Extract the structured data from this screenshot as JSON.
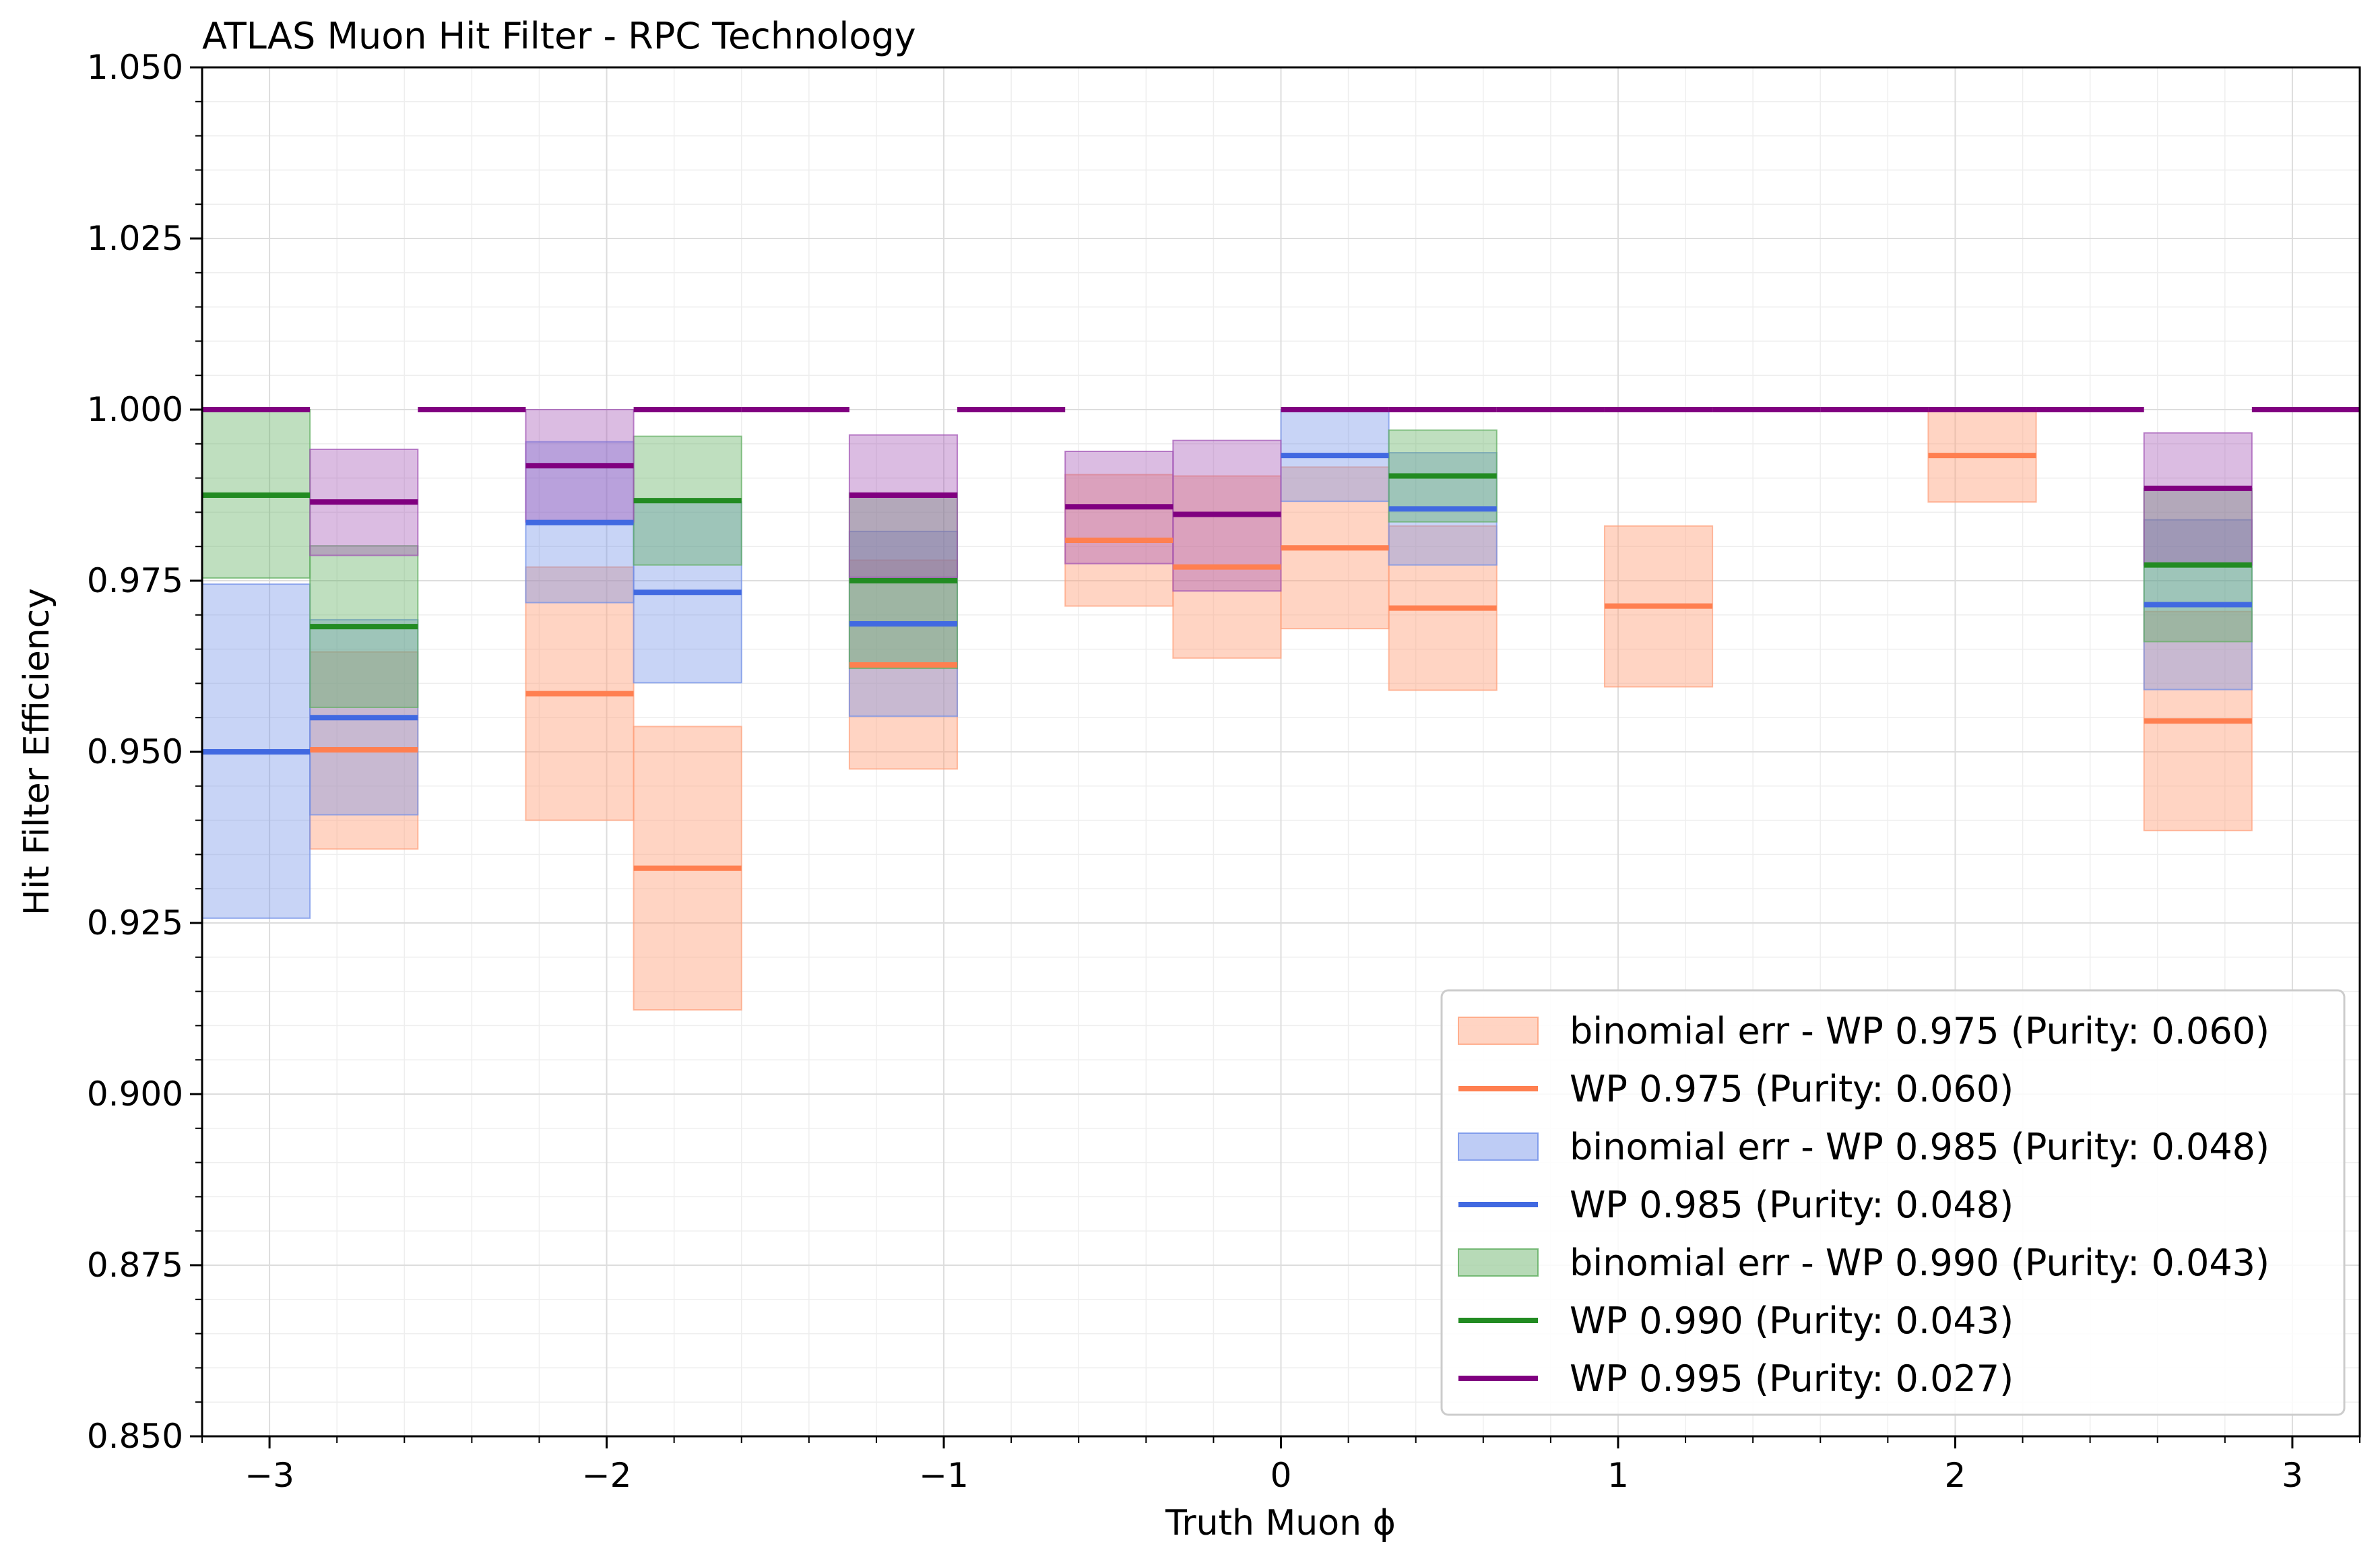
{
  "chart_data": {
    "type": "bar",
    "title": "ATLAS Muon Hit Filter - RPC Technology",
    "xlabel": "Truth Muon ϕ",
    "ylabel": "Hit Filter Efficiency",
    "xlim": [
      -3.2,
      3.2
    ],
    "ylim": [
      0.85,
      1.05
    ],
    "xticks": [
      -3,
      -2,
      -1,
      0,
      1,
      2,
      3
    ],
    "xtick_labels": [
      "−3",
      "−2",
      "−1",
      "0",
      "1",
      "2",
      "3"
    ],
    "yticks": [
      0.85,
      0.875,
      0.9,
      0.925,
      0.95,
      0.975,
      1.0,
      1.025,
      1.05
    ],
    "ytick_labels": [
      "0.850",
      "0.875",
      "0.900",
      "0.925",
      "0.950",
      "0.975",
      "1.000",
      "1.025",
      "1.050"
    ],
    "grid": true,
    "legend_position": "lower-right",
    "bin_edges": [
      -3.2,
      -2.88,
      -2.56,
      -2.24,
      -1.92,
      -1.6,
      -1.28,
      -0.96,
      -0.64,
      -0.32,
      0.0,
      0.32,
      0.64,
      0.96,
      1.28,
      1.6,
      1.92,
      2.24,
      2.56,
      2.88,
      3.2
    ],
    "series": [
      {
        "name": "WP 0.975 (Purity: 0.060)",
        "band_label": "binomial err - WP 0.975 (Purity: 0.060)",
        "line_color": "#ff7f50",
        "band_color": "#ffa07a",
        "band_alpha": 0.45,
        "values": [
          null,
          0.9503,
          null,
          0.9585,
          0.933,
          null,
          0.9627,
          null,
          0.9809,
          0.977,
          0.9798,
          0.971,
          null,
          0.9713,
          null,
          null,
          0.9933,
          null,
          0.9545,
          null
        ],
        "lower": [
          null,
          0.9358,
          null,
          0.94,
          0.9123,
          null,
          0.9475,
          null,
          0.9713,
          0.9637,
          0.968,
          0.959,
          null,
          0.9595,
          null,
          null,
          0.9865,
          null,
          0.9385,
          null
        ],
        "upper": [
          null,
          0.9646,
          null,
          0.977,
          0.9537,
          null,
          0.978,
          null,
          0.9905,
          0.9903,
          0.9916,
          0.983,
          null,
          0.983,
          null,
          null,
          1.0,
          null,
          0.9705,
          null
        ]
      },
      {
        "name": "WP 0.985 (Purity: 0.048)",
        "band_label": "binomial err - WP 0.985 (Purity: 0.048)",
        "line_color": "#4169e1",
        "band_color": "#6f8ee8",
        "band_alpha": 0.38,
        "values": [
          0.95,
          0.955,
          null,
          0.9835,
          0.9733,
          null,
          0.9687,
          null,
          null,
          null,
          0.9933,
          0.9855,
          null,
          null,
          null,
          null,
          null,
          null,
          0.9715,
          null
        ],
        "lower": [
          0.9257,
          0.9408,
          null,
          0.9718,
          0.9601,
          null,
          0.9552,
          null,
          null,
          null,
          0.9866,
          0.9773,
          null,
          null,
          null,
          null,
          null,
          null,
          0.9591,
          null
        ],
        "upper": [
          0.9745,
          0.9693,
          null,
          0.9953,
          0.9865,
          null,
          0.9822,
          null,
          null,
          null,
          1.0,
          0.9937,
          null,
          null,
          null,
          null,
          null,
          null,
          0.9839,
          null
        ]
      },
      {
        "name": "WP 0.990 (Purity: 0.043)",
        "band_label": "binomial err - WP 0.990 (Purity: 0.043)",
        "line_color": "#228b22",
        "band_color": "#5fae5f",
        "band_alpha": 0.4,
        "values": [
          0.9875,
          0.9683,
          null,
          null,
          0.9867,
          null,
          0.975,
          null,
          null,
          null,
          null,
          0.9903,
          null,
          null,
          null,
          null,
          null,
          null,
          0.9773,
          null
        ],
        "lower": [
          0.9754,
          0.9565,
          null,
          null,
          0.9773,
          null,
          0.9622,
          null,
          null,
          null,
          null,
          0.9836,
          null,
          null,
          null,
          null,
          null,
          null,
          0.9661,
          null
        ],
        "upper": [
          1.0,
          0.9801,
          null,
          null,
          0.9961,
          null,
          0.9878,
          null,
          null,
          null,
          null,
          0.997,
          null,
          null,
          null,
          null,
          null,
          null,
          0.9885,
          null
        ]
      },
      {
        "name": "WP 0.995 (Purity: 0.027)",
        "band_label": "",
        "line_color": "#800080",
        "band_color": "#a050b4",
        "band_alpha": 0.38,
        "values": [
          1.0,
          0.9865,
          1.0,
          0.9918,
          1.0,
          1.0,
          0.9875,
          1.0,
          0.9858,
          0.9847,
          1.0,
          1.0,
          1.0,
          1.0,
          1.0,
          1.0,
          1.0,
          1.0,
          0.9885,
          1.0
        ],
        "lower": [
          null,
          0.9787,
          null,
          0.9836,
          null,
          null,
          0.9755,
          null,
          0.9775,
          0.9735,
          null,
          null,
          null,
          null,
          null,
          null,
          null,
          null,
          0.9773,
          null
        ],
        "upper": [
          null,
          0.9942,
          null,
          1.0,
          null,
          null,
          0.9963,
          null,
          0.9939,
          0.9955,
          null,
          null,
          null,
          null,
          null,
          null,
          null,
          null,
          0.9966,
          null
        ]
      }
    ],
    "legend": [
      {
        "kind": "band",
        "label": "binomial err - WP 0.975 (Purity: 0.060)",
        "color": "#ffa07a"
      },
      {
        "kind": "line",
        "label": "WP 0.975 (Purity: 0.060)",
        "color": "#ff7f50"
      },
      {
        "kind": "band",
        "label": "binomial err - WP 0.985 (Purity: 0.048)",
        "color": "#6f8ee8"
      },
      {
        "kind": "line",
        "label": "WP 0.985 (Purity: 0.048)",
        "color": "#4169e1"
      },
      {
        "kind": "band",
        "label": "binomial err - WP 0.990 (Purity: 0.043)",
        "color": "#5fae5f"
      },
      {
        "kind": "line",
        "label": "WP 0.990 (Purity: 0.043)",
        "color": "#228b22"
      },
      {
        "kind": "line",
        "label": "WP 0.995 (Purity: 0.027)",
        "color": "#800080"
      }
    ]
  }
}
